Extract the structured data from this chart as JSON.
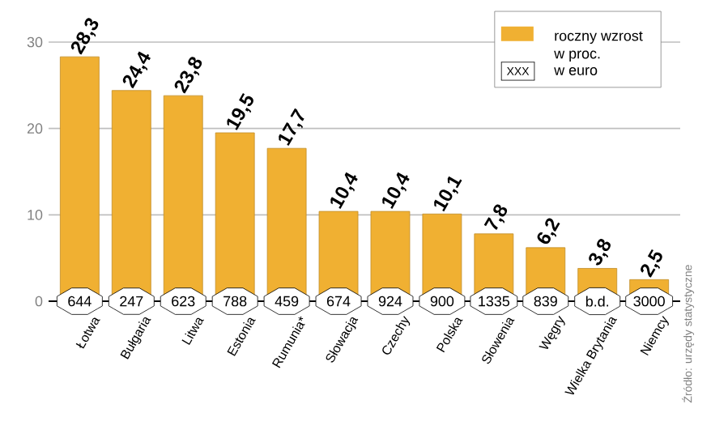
{
  "chart_data": {
    "type": "bar",
    "categories": [
      "Łotwa",
      "Bułgaria",
      "Litwa",
      "Estonia",
      "Rumunia*",
      "Słowacja",
      "Czechy",
      "Polska",
      "Słowenia",
      "Węgry",
      "Wielka Brytania",
      "Niemcy"
    ],
    "series": [
      {
        "name": "roczny wzrost w proc.",
        "color": "#f0b032",
        "values": [
          28.3,
          24.4,
          23.8,
          19.5,
          17.7,
          10.4,
          10.4,
          10.1,
          7.8,
          6.2,
          3.8,
          2.5
        ],
        "value_labels": [
          "28,3",
          "24,4",
          "23,8",
          "19,5",
          "17,7",
          "10,4",
          "10,4",
          "10,1",
          "7,8",
          "6,2",
          "3,8",
          "2,5"
        ]
      }
    ],
    "ylim": [
      0,
      30
    ],
    "yticks": [
      0,
      10,
      20,
      30
    ],
    "grid": "y",
    "legend": "top right",
    "annotations": [
      "XXX",
      "w euro",
      "Źródło: urzędy statystyczne",
      {
        "text": "644",
        "x": "Łotwa",
        "y": 0
      },
      {
        "text": "247",
        "x": "Bułgaria",
        "y": 0
      },
      {
        "text": "623",
        "x": "Litwa",
        "y": 0
      },
      {
        "text": "788",
        "x": "Estonia",
        "y": 0
      },
      {
        "text": "459",
        "x": "Rumunia*",
        "y": 0
      },
      {
        "text": "674",
        "x": "Słowacja",
        "y": 0
      },
      {
        "text": "924",
        "x": "Czechy",
        "y": 0
      },
      {
        "text": "900",
        "x": "Polska",
        "y": 0
      },
      {
        "text": "1335",
        "x": "Słowenia",
        "y": 0
      },
      {
        "text": "839",
        "x": "Węgry",
        "y": 0
      },
      {
        "text": "b.d.",
        "x": "Wielka Brytania",
        "y": 0
      },
      {
        "text": "3000",
        "x": "Niemcy",
        "y": 0
      }
    ]
  }
}
